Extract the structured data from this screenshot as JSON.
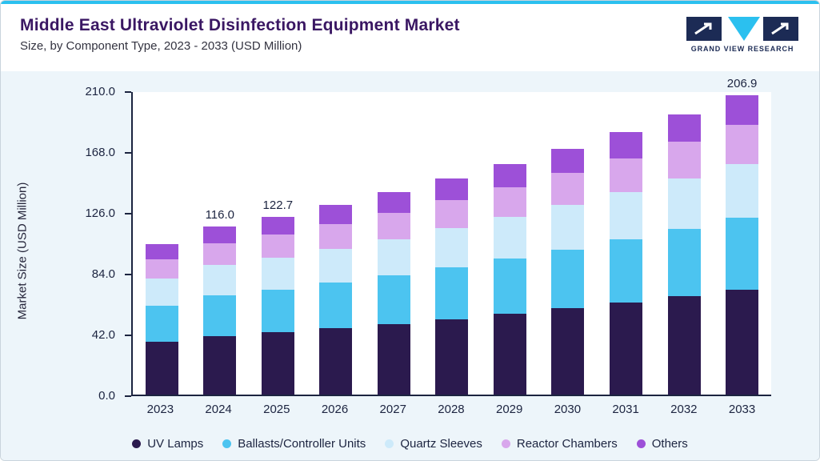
{
  "header": {
    "title": "Middle East Ultraviolet Disinfection Equipment Market",
    "subtitle": "Size, by Component Type, 2023 - 2033 (USD Million)",
    "logo_text": "GRAND VIEW RESEARCH"
  },
  "colors": {
    "accent_cyan": "#2bc0ef",
    "logo_navy": "#1c2b55",
    "title_purple": "#3a1763",
    "axis_text": "#1c2440"
  },
  "chart_data": {
    "type": "bar",
    "stacked": true,
    "title": "Middle East Ultraviolet Disinfection Equipment Market",
    "subtitle": "Size, by Component Type, 2023 - 2033 (USD Million)",
    "xlabel": "",
    "ylabel": "Market Size (USD Million)",
    "ylim": [
      0,
      210
    ],
    "yticks": [
      0.0,
      42.0,
      84.0,
      126.0,
      168.0,
      210.0
    ],
    "grid": false,
    "legend_position": "bottom",
    "categories": [
      "2023",
      "2024",
      "2025",
      "2026",
      "2027",
      "2028",
      "2029",
      "2030",
      "2031",
      "2032",
      "2033"
    ],
    "series": [
      {
        "name": "UV Lamps",
        "color": "#2b1a4e",
        "values": [
          36.4,
          40.6,
          43.0,
          45.8,
          48.9,
          52.2,
          55.7,
          59.5,
          63.5,
          67.8,
          72.4
        ]
      },
      {
        "name": "Ballasts/Controller Units",
        "color": "#4cc4f0",
        "values": [
          25.0,
          27.8,
          29.4,
          31.4,
          33.5,
          35.8,
          38.2,
          40.8,
          43.5,
          46.5,
          49.7
        ]
      },
      {
        "name": "Quartz Sleeves",
        "color": "#cdeafa",
        "values": [
          18.7,
          20.9,
          22.1,
          23.6,
          25.1,
          26.8,
          28.7,
          30.6,
          32.7,
          34.9,
          37.2
        ]
      },
      {
        "name": "Reactor Chambers",
        "color": "#d8a7ec",
        "values": [
          13.5,
          15.1,
          16.0,
          17.0,
          18.2,
          19.4,
          20.7,
          22.1,
          23.6,
          25.2,
          26.9
        ]
      },
      {
        "name": "Others",
        "color": "#9d50d8",
        "values": [
          10.4,
          11.6,
          12.2,
          13.1,
          14.0,
          14.9,
          15.9,
          16.9,
          18.1,
          19.3,
          20.7
        ]
      }
    ],
    "totals": [
      104.0,
      116.0,
      122.7,
      130.9,
      139.7,
      149.1,
      159.2,
      169.9,
      181.4,
      193.7,
      206.9
    ],
    "bar_labels": {
      "2024": "116.0",
      "2025": "122.7",
      "2033": "206.9"
    }
  }
}
